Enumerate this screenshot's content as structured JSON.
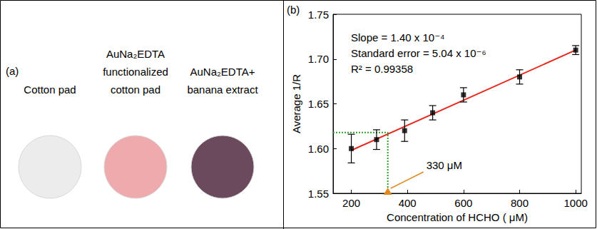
{
  "panel_a": {
    "label": "(a)",
    "pads": [
      {
        "label_lines": [
          "Cotton pad"
        ],
        "color": "#ececec"
      },
      {
        "label_lines": [
          "AuNa₂EDTA",
          "functionalized",
          "cotton pad"
        ],
        "color": "#eeaaad"
      },
      {
        "label_lines": [
          "AuNa₂EDTA+",
          "banana extract"
        ],
        "color": "#6a4a5c"
      }
    ]
  },
  "chart_data": {
    "type": "scatter",
    "panel_label": "(b)",
    "x_label": "Concentration of HCHO ( μM)",
    "y_label": "Average 1/R",
    "xlim": [
      135,
      1020
    ],
    "xticks": [
      200,
      400,
      600,
      800,
      1000
    ],
    "ylim": [
      1.55,
      1.75
    ],
    "yticks": [
      1.55,
      {
        "value": 1.6,
        "label": "1.60"
      },
      1.65,
      {
        "value": 1.7,
        "label": "1.70"
      },
      1.75
    ],
    "grid": false,
    "series": [
      {
        "type": "scatter",
        "color": "#000000",
        "marker": "square",
        "x": [
          200,
          290,
          390,
          490,
          600,
          800,
          1000
        ],
        "values": [
          1.6,
          1.61,
          1.62,
          1.64,
          1.66,
          1.68,
          1.71
        ],
        "errors": [
          0.016,
          0.011,
          0.012,
          0.008,
          0.008,
          0.008,
          0.005
        ]
      },
      {
        "type": "line",
        "color": "#e8281f",
        "line_style": "solid",
        "x": [
          200,
          1000
        ],
        "values": [
          1.598,
          1.71
        ]
      },
      {
        "type": "line",
        "color": "#2ca02c",
        "line_style": "dotted",
        "x": [
          135,
          330,
          330
        ],
        "values": [
          1.618,
          1.618,
          1.55
        ]
      }
    ],
    "text_lines": [
      "Slope = 1.40 x 10⁻⁴",
      "Standard error = 5.04 x 10⁻⁶",
      "R² = 0.99358"
    ],
    "annotations": [
      {
        "text": "330 μM",
        "x": 330,
        "y": 1.55,
        "color": "#e08a1e"
      }
    ]
  }
}
